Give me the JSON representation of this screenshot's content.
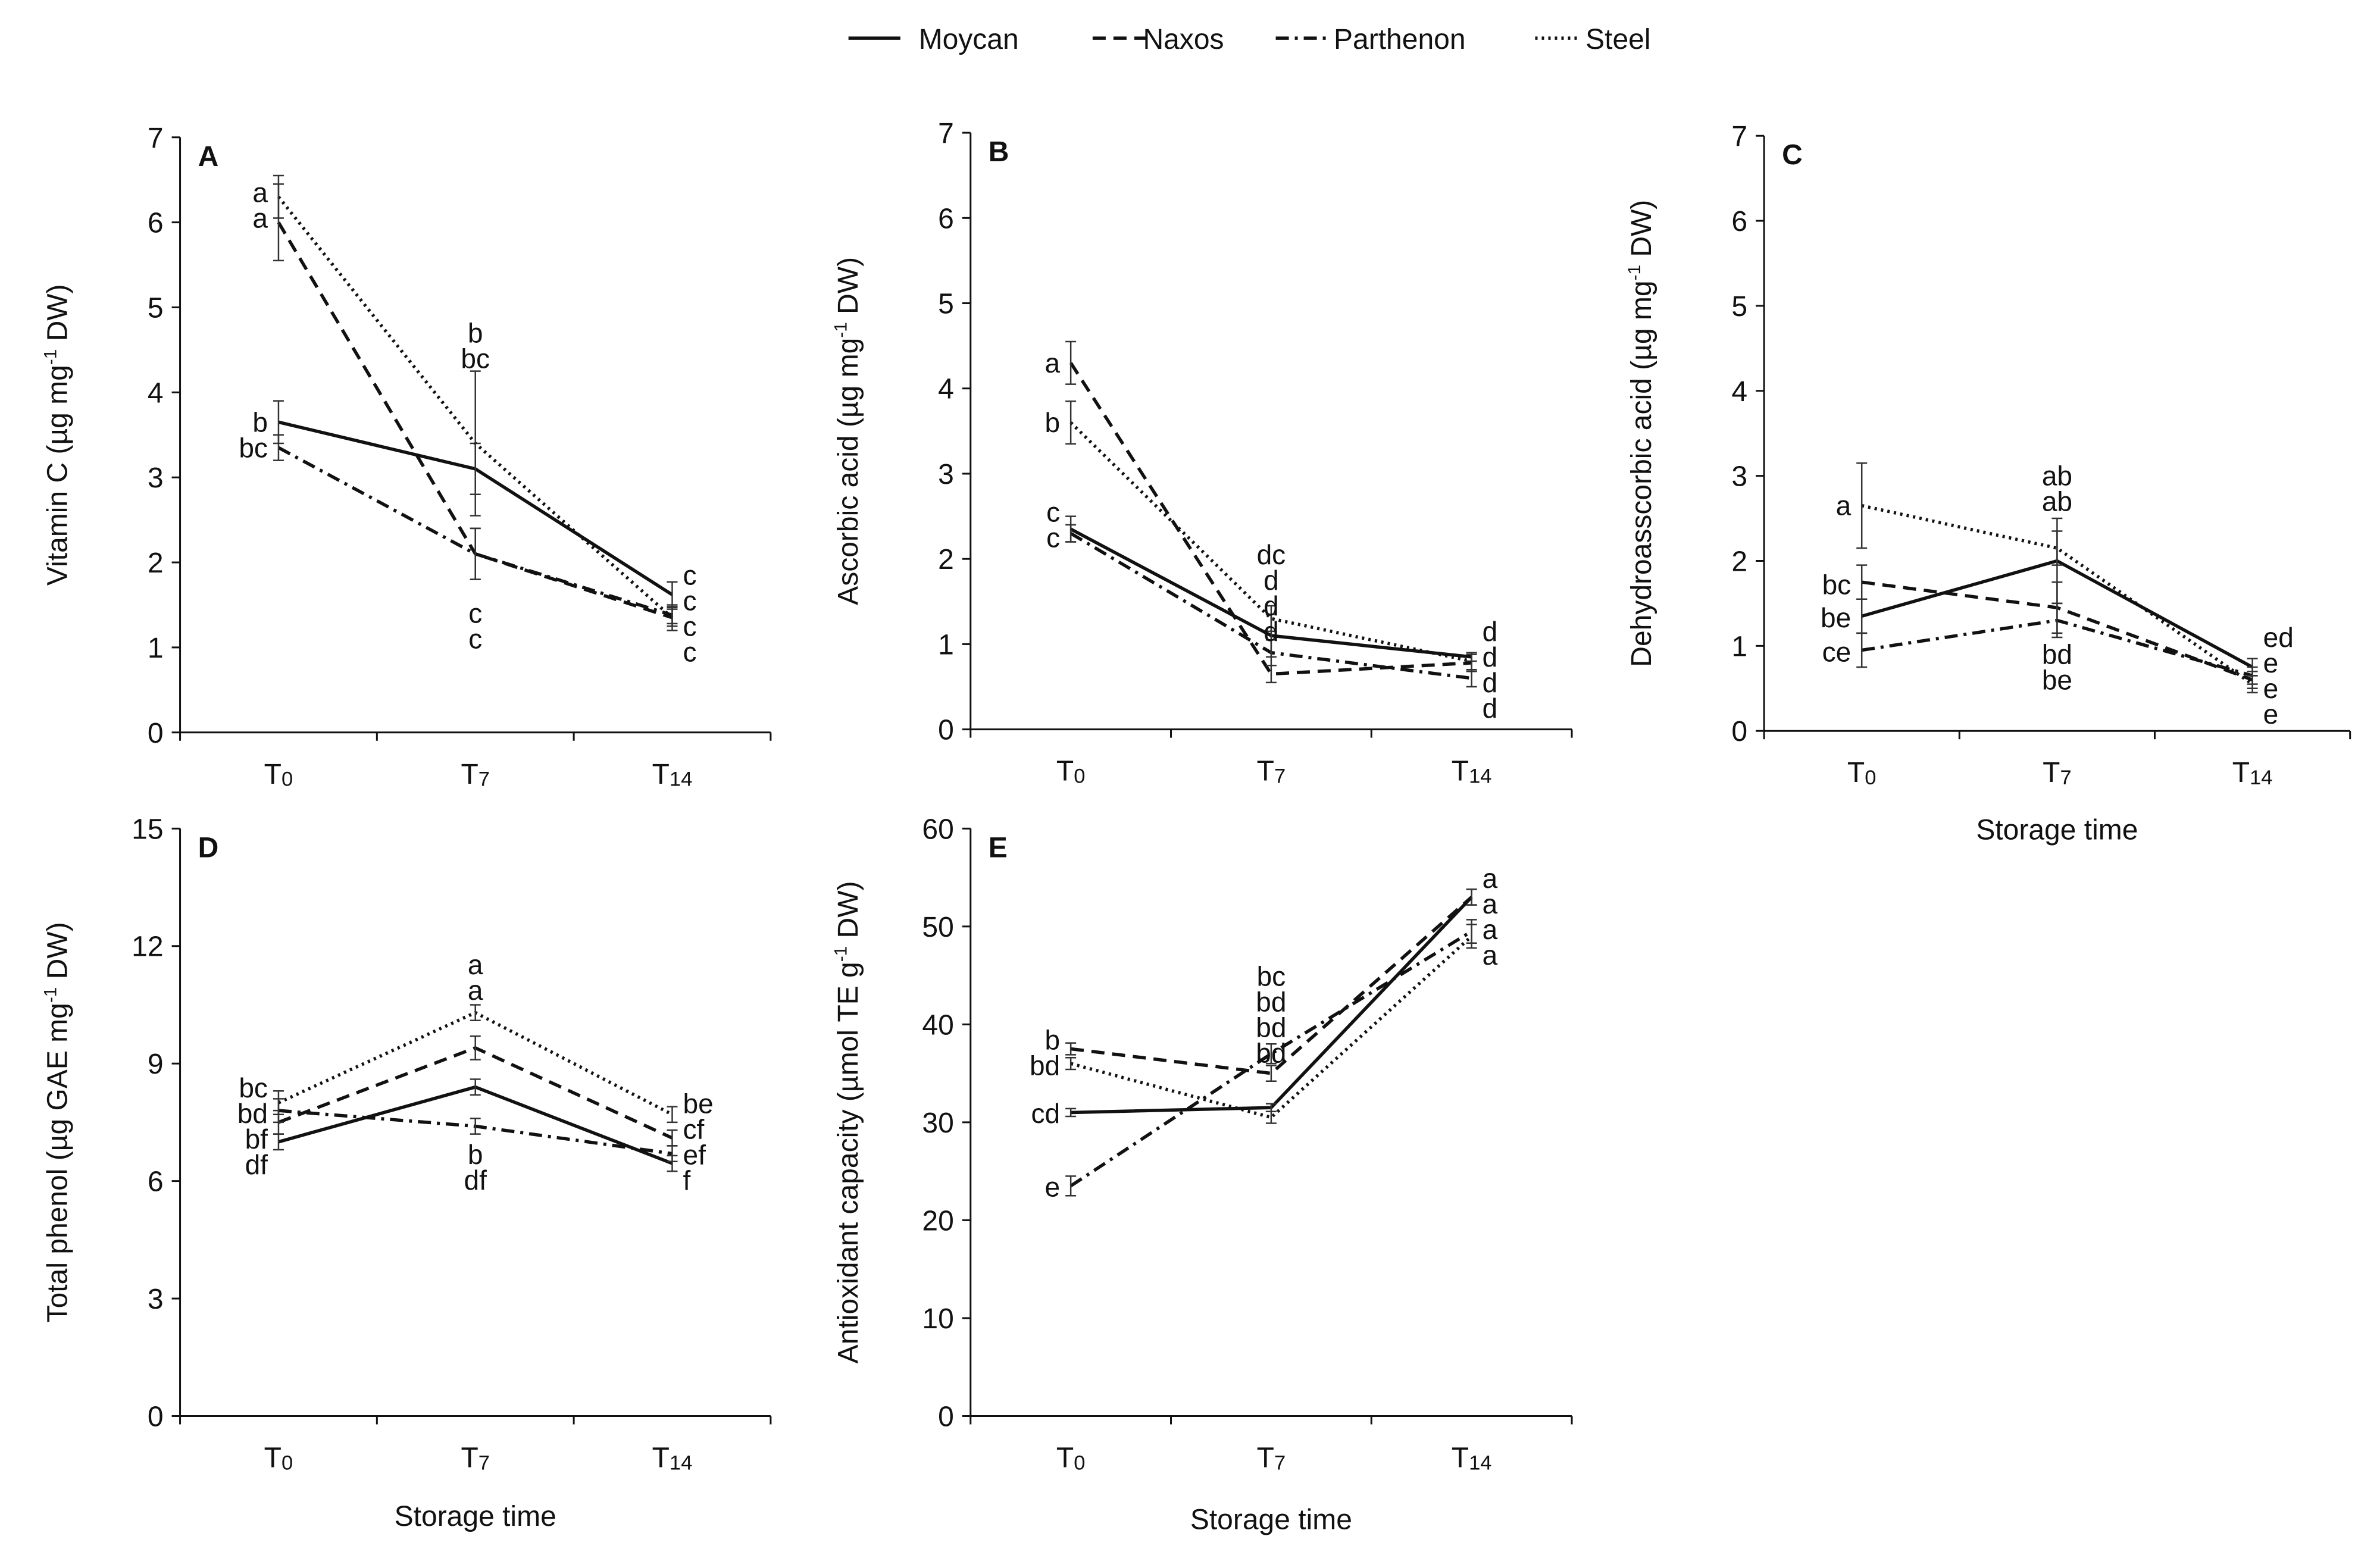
{
  "figure": {
    "legend": [
      {
        "name": "Moycan",
        "dash": "solid"
      },
      {
        "name": "Naxos",
        "dash": "dashed"
      },
      {
        "name": "Parthenon",
        "dash": "dashdot"
      },
      {
        "name": "Steel",
        "dash": "dotted"
      }
    ],
    "xlabel_text": "Storage time",
    "categories": [
      "T0",
      "T7",
      "T14"
    ]
  },
  "chart_data": [
    {
      "type": "line",
      "panel": "A",
      "ylabel": "Vitamin C (µg mg-1 DW)",
      "xlabel": "",
      "categories": [
        "T0",
        "T7",
        "T14"
      ],
      "ylim": [
        0,
        7
      ],
      "yticks": [
        0,
        1,
        2,
        3,
        4,
        5,
        6,
        7
      ],
      "series": [
        {
          "name": "Moycan",
          "values": [
            3.65,
            3.1,
            1.62
          ],
          "errors": [
            0.25,
            0.3,
            0.15
          ]
        },
        {
          "name": "Naxos",
          "values": [
            6.0,
            2.1,
            1.35
          ],
          "errors": [
            0.45,
            0.3,
            0.1
          ]
        },
        {
          "name": "Parthenon",
          "values": [
            3.35,
            2.1,
            1.38
          ],
          "errors": [
            0.15,
            0.3,
            0.1
          ]
        },
        {
          "name": "Steel",
          "values": [
            6.3,
            3.4,
            1.35
          ],
          "errors": [
            0.25,
            0.85,
            0.15
          ]
        }
      ],
      "annotations": [
        {
          "cat": 0,
          "lines": [
            "a",
            "a"
          ],
          "side": "left",
          "y": 6.2
        },
        {
          "cat": 0,
          "lines": [
            "b",
            "bc"
          ],
          "side": "left",
          "y": 3.5
        },
        {
          "cat": 1,
          "lines": [
            "b",
            "bc"
          ],
          "side": "center",
          "y": 4.55
        },
        {
          "cat": 1,
          "lines": [
            "c",
            "c"
          ],
          "side": "center",
          "y": 1.25
        },
        {
          "cat": 2,
          "lines": [
            "c",
            "c",
            "c",
            "c"
          ],
          "side": "right",
          "y": 1.4
        }
      ]
    },
    {
      "type": "line",
      "panel": "B",
      "ylabel": "Ascorbic acid  (µg mg-1 DW)",
      "xlabel": "",
      "categories": [
        "T0",
        "T7",
        "T14"
      ],
      "ylim": [
        0,
        7
      ],
      "yticks": [
        0,
        1,
        2,
        3,
        4,
        5,
        6,
        7
      ],
      "series": [
        {
          "name": "Moycan",
          "values": [
            2.35,
            1.1,
            0.85
          ],
          "errors": [
            0.15,
            0.25,
            0.05
          ]
        },
        {
          "name": "Naxos",
          "values": [
            4.3,
            0.65,
            0.78
          ],
          "errors": [
            0.25,
            0.1,
            0.1
          ]
        },
        {
          "name": "Parthenon",
          "values": [
            2.3,
            0.9,
            0.6
          ],
          "errors": [
            0.1,
            0.15,
            0.1
          ]
        },
        {
          "name": "Steel",
          "values": [
            3.6,
            1.3,
            0.8
          ],
          "errors": [
            0.25,
            0.15,
            0.1
          ]
        }
      ],
      "annotations": [
        {
          "cat": 0,
          "lines": [
            "a"
          ],
          "side": "left",
          "y": 4.3
        },
        {
          "cat": 0,
          "lines": [
            "b"
          ],
          "side": "left",
          "y": 3.6
        },
        {
          "cat": 0,
          "lines": [
            "c",
            "c"
          ],
          "side": "left",
          "y": 2.4
        },
        {
          "cat": 1,
          "lines": [
            "dc",
            "d",
            "d",
            "d"
          ],
          "side": "center",
          "y": 1.6
        },
        {
          "cat": 2,
          "lines": [
            "d",
            "d",
            "d",
            "d"
          ],
          "side": "right",
          "y": 0.7
        }
      ]
    },
    {
      "type": "line",
      "panel": "C",
      "ylabel": "Dehydroasscorbic acid  (µg mg-1 DW)",
      "xlabel": "Storage time",
      "categories": [
        "T0",
        "T7",
        "T14"
      ],
      "ylim": [
        0,
        7
      ],
      "yticks": [
        0,
        1,
        2,
        3,
        4,
        5,
        6,
        7
      ],
      "series": [
        {
          "name": "Moycan",
          "values": [
            1.35,
            2.0,
            0.75
          ],
          "errors": [
            0.2,
            0.5,
            0.1
          ]
        },
        {
          "name": "Naxos",
          "values": [
            1.75,
            1.45,
            0.6
          ],
          "errors": [
            0.2,
            0.3,
            0.1
          ]
        },
        {
          "name": "Parthenon",
          "values": [
            0.95,
            1.3,
            0.65
          ],
          "errors": [
            0.2,
            0.2,
            0.1
          ]
        },
        {
          "name": "Steel",
          "values": [
            2.65,
            2.15,
            0.55
          ],
          "errors": [
            0.5,
            0.2,
            0.1
          ]
        }
      ],
      "annotations": [
        {
          "cat": 0,
          "lines": [
            "a"
          ],
          "side": "left",
          "y": 2.65
        },
        {
          "cat": 0,
          "lines": [
            "bc"
          ],
          "side": "left",
          "y": 1.72
        },
        {
          "cat": 0,
          "lines": [
            "be"
          ],
          "side": "left",
          "y": 1.33
        },
        {
          "cat": 0,
          "lines": [
            "ce"
          ],
          "side": "left",
          "y": 0.93
        },
        {
          "cat": 1,
          "lines": [
            "ab",
            "ab"
          ],
          "side": "center",
          "y": 2.85
        },
        {
          "cat": 1,
          "lines": [
            "bd",
            "be"
          ],
          "side": "center",
          "y": 0.75
        },
        {
          "cat": 2,
          "lines": [
            "ed",
            "e",
            "e",
            "e"
          ],
          "side": "right",
          "y": 0.65
        }
      ]
    },
    {
      "type": "line",
      "panel": "D",
      "ylabel": "Total phenol (µg GAE mg-1 DW)",
      "xlabel": "Storage time",
      "categories": [
        "T0",
        "T7",
        "T14"
      ],
      "ylim": [
        0,
        15
      ],
      "yticks": [
        0,
        3,
        6,
        9,
        12,
        15
      ],
      "series": [
        {
          "name": "Moycan",
          "values": [
            7.0,
            8.4,
            6.45
          ],
          "errors": [
            0.2,
            0.2,
            0.2
          ]
        },
        {
          "name": "Naxos",
          "values": [
            7.5,
            9.4,
            7.1
          ],
          "errors": [
            0.3,
            0.3,
            0.2
          ]
        },
        {
          "name": "Parthenon",
          "values": [
            7.8,
            7.4,
            6.7
          ],
          "errors": [
            0.3,
            0.2,
            0.2
          ]
        },
        {
          "name": "Steel",
          "values": [
            8.0,
            10.3,
            7.7
          ],
          "errors": [
            0.3,
            0.2,
            0.2
          ]
        }
      ],
      "annotations": [
        {
          "cat": 0,
          "lines": [
            "bc",
            "bd",
            "bf",
            "df"
          ],
          "side": "left",
          "y": 7.4
        },
        {
          "cat": 1,
          "lines": [
            "a",
            "a"
          ],
          "side": "center",
          "y": 11.2
        },
        {
          "cat": 1,
          "lines": [
            "b",
            "df"
          ],
          "side": "center",
          "y": 6.35
        },
        {
          "cat": 2,
          "lines": [
            "be",
            "cf",
            "ef",
            "f"
          ],
          "side": "right",
          "y": 7.0
        }
      ]
    },
    {
      "type": "line",
      "panel": "E",
      "ylabel": "Antioxidant capacity (µmol TE g-1 DW)",
      "xlabel": "Storage time",
      "categories": [
        "T0",
        "T7",
        "T14"
      ],
      "ylim": [
        0,
        60
      ],
      "yticks": [
        0,
        10,
        20,
        30,
        40,
        50,
        60
      ],
      "series": [
        {
          "name": "Moycan",
          "values": [
            31.0,
            31.5,
            53.0
          ],
          "errors": [
            0.4,
            0.4,
            0.8
          ]
        },
        {
          "name": "Naxos",
          "values": [
            37.5,
            35.0,
            53.0
          ],
          "errors": [
            0.6,
            0.8,
            0.8
          ]
        },
        {
          "name": "Parthenon",
          "values": [
            23.5,
            37.0,
            49.5
          ],
          "errors": [
            1.0,
            1.0,
            1.2
          ]
        },
        {
          "name": "Steel",
          "values": [
            36.0,
            30.5,
            49.0
          ],
          "errors": [
            0.6,
            0.6,
            1.2
          ]
        }
      ],
      "annotations": [
        {
          "cat": 0,
          "lines": [
            "b",
            "bd"
          ],
          "side": "left",
          "y": 37.1
        },
        {
          "cat": 0,
          "lines": [
            "cd"
          ],
          "side": "left",
          "y": 30.9
        },
        {
          "cat": 0,
          "lines": [
            "e"
          ],
          "side": "left",
          "y": 23.4
        },
        {
          "cat": 1,
          "lines": [
            "bc",
            "bd",
            "bd",
            "bd"
          ],
          "side": "center",
          "y": 41.0
        },
        {
          "cat": 2,
          "lines": [
            "a",
            "a",
            "a",
            "a"
          ],
          "side": "right",
          "y": 51.0
        }
      ]
    }
  ]
}
